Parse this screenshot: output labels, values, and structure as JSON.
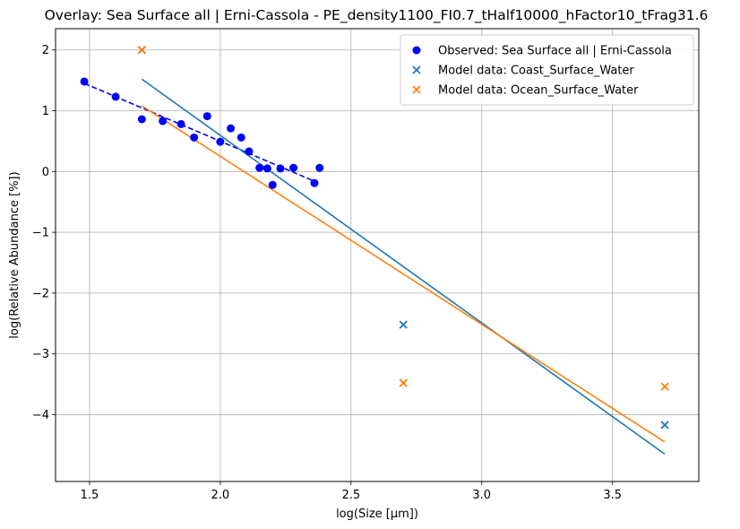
{
  "chart_data": {
    "type": "scatter",
    "title": "Overlay: Sea Surface all | Erni-Cassola - PE_density1100_FI0.7_tHalf10000_hFactor10_tFrag31.6",
    "xlabel": "log(Size [µm])",
    "ylabel": "log(Relative Abundance [%])",
    "xlim": [
      1.37,
      3.83
    ],
    "ylim": [
      -5.1,
      2.35
    ],
    "xticks": [
      1.5,
      2.0,
      2.5,
      3.0,
      3.5
    ],
    "xtick_labels": [
      "1.5",
      "2.0",
      "2.5",
      "3.0",
      "3.5"
    ],
    "yticks": [
      2,
      1,
      0,
      -1,
      -2,
      -3,
      -4
    ],
    "ytick_labels": [
      "2",
      "1",
      "0",
      "−1",
      "−2",
      "−3",
      "−4"
    ],
    "grid": true,
    "legend_position": "top-right",
    "series": [
      {
        "name": "Observed: Sea Surface all | Erni-Cassola",
        "kind": "scatter",
        "marker": "circle",
        "color": "#0000ff",
        "points": [
          [
            1.48,
            1.48
          ],
          [
            1.6,
            1.23
          ],
          [
            1.7,
            0.86
          ],
          [
            1.78,
            0.83
          ],
          [
            1.85,
            0.78
          ],
          [
            1.9,
            0.56
          ],
          [
            1.95,
            0.91
          ],
          [
            2.0,
            0.49
          ],
          [
            2.04,
            0.71
          ],
          [
            2.08,
            0.56
          ],
          [
            2.11,
            0.33
          ],
          [
            2.15,
            0.06
          ],
          [
            2.18,
            0.05
          ],
          [
            2.2,
            -0.22
          ],
          [
            2.23,
            0.05
          ],
          [
            2.28,
            0.06
          ],
          [
            2.36,
            -0.19
          ],
          [
            2.38,
            0.06
          ]
        ]
      },
      {
        "name": "Model data: Coast_Surface_Water",
        "kind": "scatter",
        "marker": "x",
        "color": "#1f77b4",
        "points": [
          [
            1.7,
            2.0
          ],
          [
            2.7,
            -2.52
          ],
          [
            3.7,
            -4.17
          ]
        ]
      },
      {
        "name": "Model data: Ocean_Surface_Water",
        "kind": "scatter",
        "marker": "x",
        "color": "#ff7f0e",
        "points": [
          [
            1.7,
            2.0
          ],
          [
            2.7,
            -3.48
          ],
          [
            3.7,
            -3.54
          ]
        ]
      }
    ],
    "fit_lines": [
      {
        "for": "Observed",
        "style": "dashed",
        "color": "#0000ff",
        "points": [
          [
            1.48,
            1.45
          ],
          [
            2.36,
            -0.16
          ]
        ]
      },
      {
        "for": "Coast_Surface_Water",
        "style": "solid",
        "color": "#1f77b4",
        "points": [
          [
            1.7,
            1.52
          ],
          [
            3.7,
            -4.65
          ]
        ]
      },
      {
        "for": "Ocean_Surface_Water",
        "style": "solid",
        "color": "#ff7f0e",
        "points": [
          [
            1.7,
            1.08
          ],
          [
            3.7,
            -4.45
          ]
        ]
      }
    ]
  }
}
